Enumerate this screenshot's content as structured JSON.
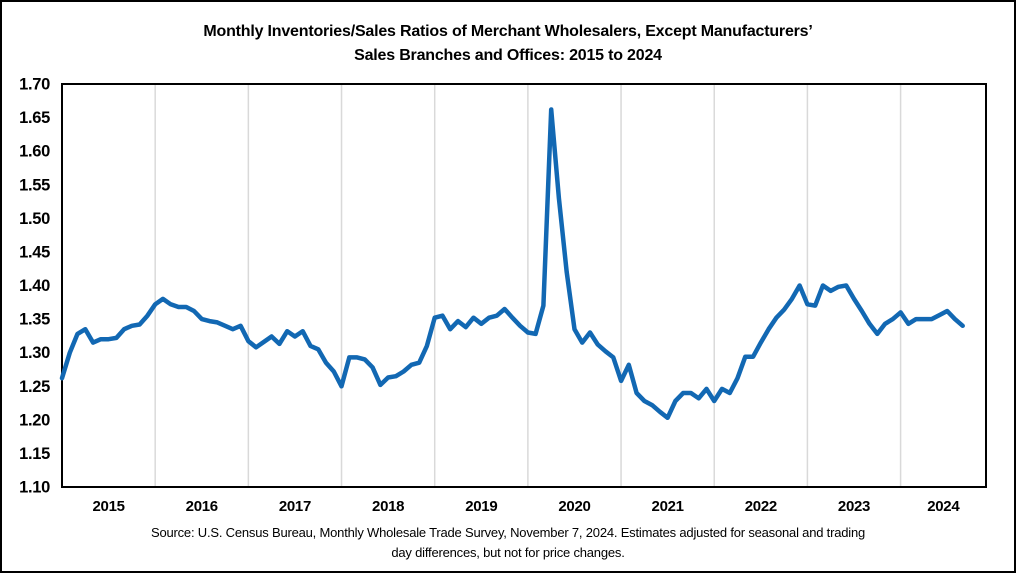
{
  "figure": {
    "title_line1": "Monthly Inventories/Sales Ratios of Merchant Wholesalers, Except Manufacturers’",
    "title_line2": "Sales Branches and Offices: 2015 to 2024",
    "source_line1": "Source: U.S. Census Bureau, Monthly Wholesale Trade Survey, November 7, 2024. Estimates adjusted for seasonal and trading",
    "source_line2": "day differences, but not for price changes."
  },
  "chart_data": {
    "type": "line",
    "title": "Monthly Inventories/Sales Ratios of Merchant Wholesalers, Except Manufacturers’ Sales Branches and Offices: 2015 to 2024",
    "xlabel": "",
    "ylabel": "",
    "x_unit": "month",
    "start_month": "2015-01",
    "end_month": "2024-09",
    "x_tick_labels": [
      "2015",
      "2016",
      "2017",
      "2018",
      "2019",
      "2020",
      "2021",
      "2022",
      "2023",
      "2024"
    ],
    "y_tick_labels": [
      "1.70",
      "1.65",
      "1.60",
      "1.55",
      "1.50",
      "1.45",
      "1.40",
      "1.35",
      "1.30",
      "1.25",
      "1.20",
      "1.15",
      "1.10"
    ],
    "ylim": [
      1.1,
      1.7
    ],
    "y_tick_step": 0.05,
    "grid": "vertical-year-gridlines-only",
    "legend": "none",
    "line_color": "#1268B3",
    "gridline_color": "#D9D9D9",
    "border_color": "#000000",
    "series": [
      {
        "name": "Inventories/Sales Ratio",
        "values": [
          1.262,
          1.3,
          1.328,
          1.335,
          1.315,
          1.32,
          1.32,
          1.322,
          1.335,
          1.34,
          1.342,
          1.355,
          1.372,
          1.38,
          1.372,
          1.368,
          1.368,
          1.362,
          1.35,
          1.347,
          1.345,
          1.34,
          1.335,
          1.34,
          1.317,
          1.308,
          1.316,
          1.324,
          1.313,
          1.332,
          1.324,
          1.332,
          1.31,
          1.305,
          1.285,
          1.272,
          1.25,
          1.293,
          1.293,
          1.29,
          1.278,
          1.252,
          1.263,
          1.265,
          1.272,
          1.282,
          1.285,
          1.31,
          1.352,
          1.355,
          1.335,
          1.347,
          1.338,
          1.352,
          1.343,
          1.352,
          1.355,
          1.365,
          1.352,
          1.34,
          1.33,
          1.328,
          1.37,
          1.662,
          1.53,
          1.42,
          1.335,
          1.315,
          1.33,
          1.312,
          1.302,
          1.293,
          1.258,
          1.282,
          1.24,
          1.228,
          1.222,
          1.212,
          1.203,
          1.228,
          1.24,
          1.24,
          1.232,
          1.246,
          1.228,
          1.246,
          1.24,
          1.262,
          1.294,
          1.294,
          1.315,
          1.335,
          1.352,
          1.364,
          1.38,
          1.4,
          1.372,
          1.37,
          1.4,
          1.392,
          1.398,
          1.4,
          1.38,
          1.362,
          1.343,
          1.328,
          1.343,
          1.35,
          1.36,
          1.343,
          1.35,
          1.35,
          1.35,
          1.356,
          1.362,
          1.35,
          1.34
        ]
      }
    ]
  }
}
